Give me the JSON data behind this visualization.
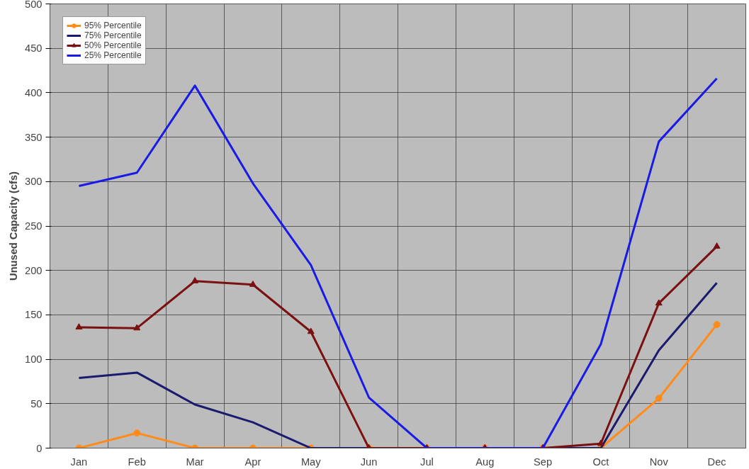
{
  "chart_data": {
    "type": "line",
    "ylabel": "Unused Capacity (cfs)",
    "categories": [
      "Jan",
      "Feb",
      "Mar",
      "Apr",
      "May",
      "Jun",
      "Jul",
      "Aug",
      "Sep",
      "Oct",
      "Nov",
      "Dec"
    ],
    "series": [
      {
        "name": "95% Percentile",
        "color": "#ff8c1a",
        "marker": "circle",
        "values": [
          0,
          17,
          0,
          0,
          0,
          0,
          0,
          0,
          0,
          0,
          56,
          139
        ]
      },
      {
        "name": "75% Percentile",
        "color": "#1a1a6e",
        "marker": "none",
        "values": [
          79,
          85,
          49,
          29,
          0,
          0,
          0,
          0,
          0,
          0,
          110,
          186
        ]
      },
      {
        "name": "50% Percentile",
        "color": "#7a1010",
        "marker": "triangle",
        "values": [
          136,
          135,
          188,
          184,
          131,
          0,
          0,
          0,
          0,
          5,
          163,
          227
        ]
      },
      {
        "name": "25% Percentile",
        "color": "#1a1ae6",
        "marker": "none",
        "values": [
          295,
          310,
          408,
          298,
          206,
          57,
          0,
          0,
          0,
          117,
          345,
          416
        ]
      }
    ],
    "ylim": [
      0,
      500
    ],
    "yticks": [
      0,
      50,
      100,
      150,
      200,
      250,
      300,
      350,
      400,
      450,
      500
    ],
    "grid": true,
    "legend": "top left"
  }
}
